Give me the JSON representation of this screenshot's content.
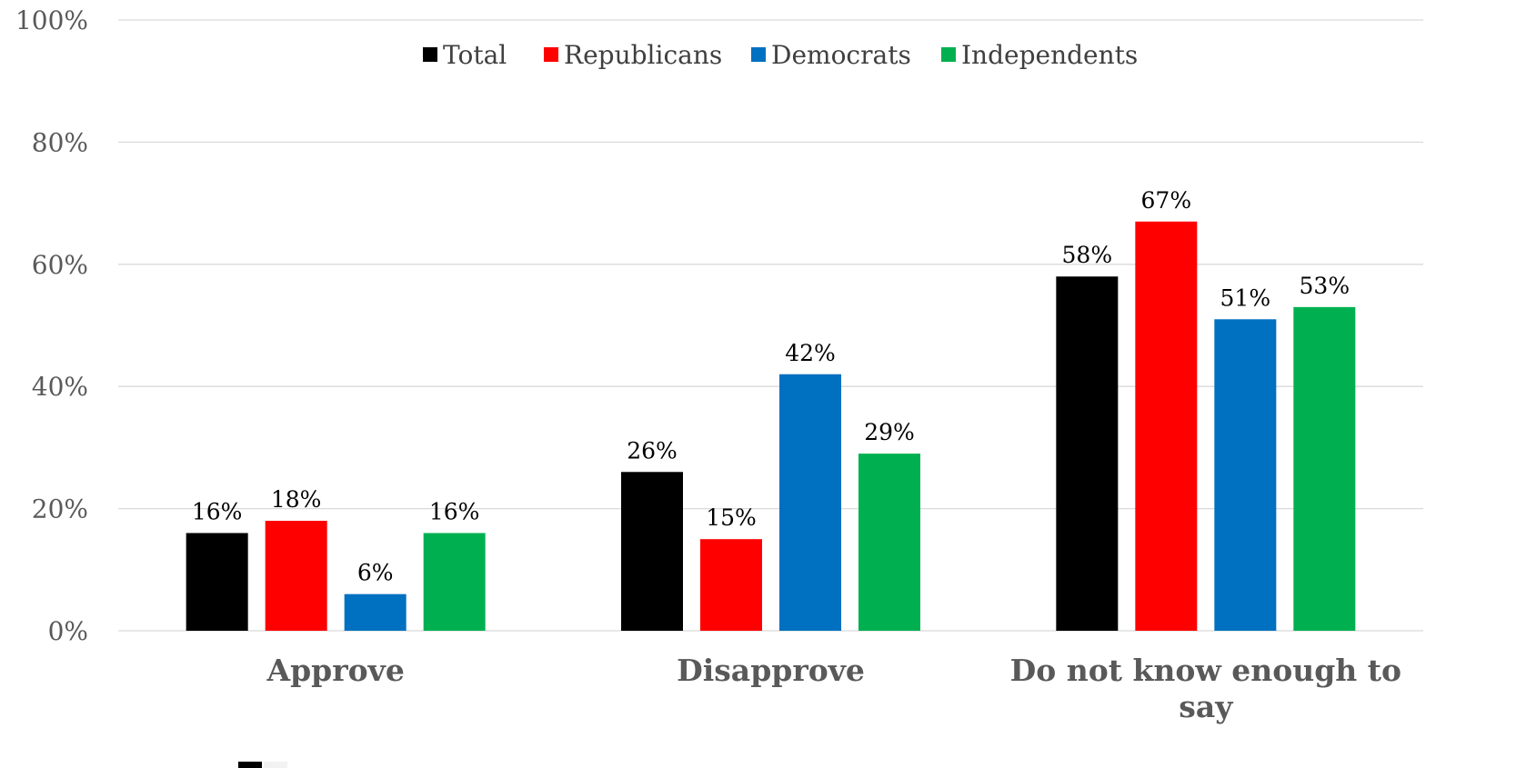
{
  "chart_data": {
    "type": "bar",
    "categories": [
      "Approve",
      "Disapprove",
      "Do not know enough to say"
    ],
    "category_lines": [
      [
        "Approve"
      ],
      [
        "Disapprove"
      ],
      [
        "Do not know enough to",
        "say"
      ]
    ],
    "series": [
      {
        "name": "Total",
        "color": "#000000",
        "values": [
          16,
          26,
          58
        ]
      },
      {
        "name": "Republicans",
        "color": "#ff0000",
        "values": [
          18,
          15,
          67
        ]
      },
      {
        "name": "Democrats",
        "color": "#0070c0",
        "values": [
          6,
          42,
          51
        ]
      },
      {
        "name": "Independents",
        "color": "#00b050",
        "values": [
          16,
          29,
          53
        ]
      }
    ],
    "data_labels": [
      [
        "16%",
        "26%",
        "58%"
      ],
      [
        "18%",
        "15%",
        "67%"
      ],
      [
        "6%",
        "42%",
        "51%"
      ],
      [
        "16%",
        "29%",
        "53%"
      ]
    ],
    "y_ticks": [
      "0%",
      "20%",
      "40%",
      "60%",
      "80%",
      "100%"
    ],
    "ylim": [
      0,
      100
    ],
    "grid": true,
    "legend_position": "top-center",
    "title": "",
    "xlabel": "",
    "ylabel": ""
  }
}
